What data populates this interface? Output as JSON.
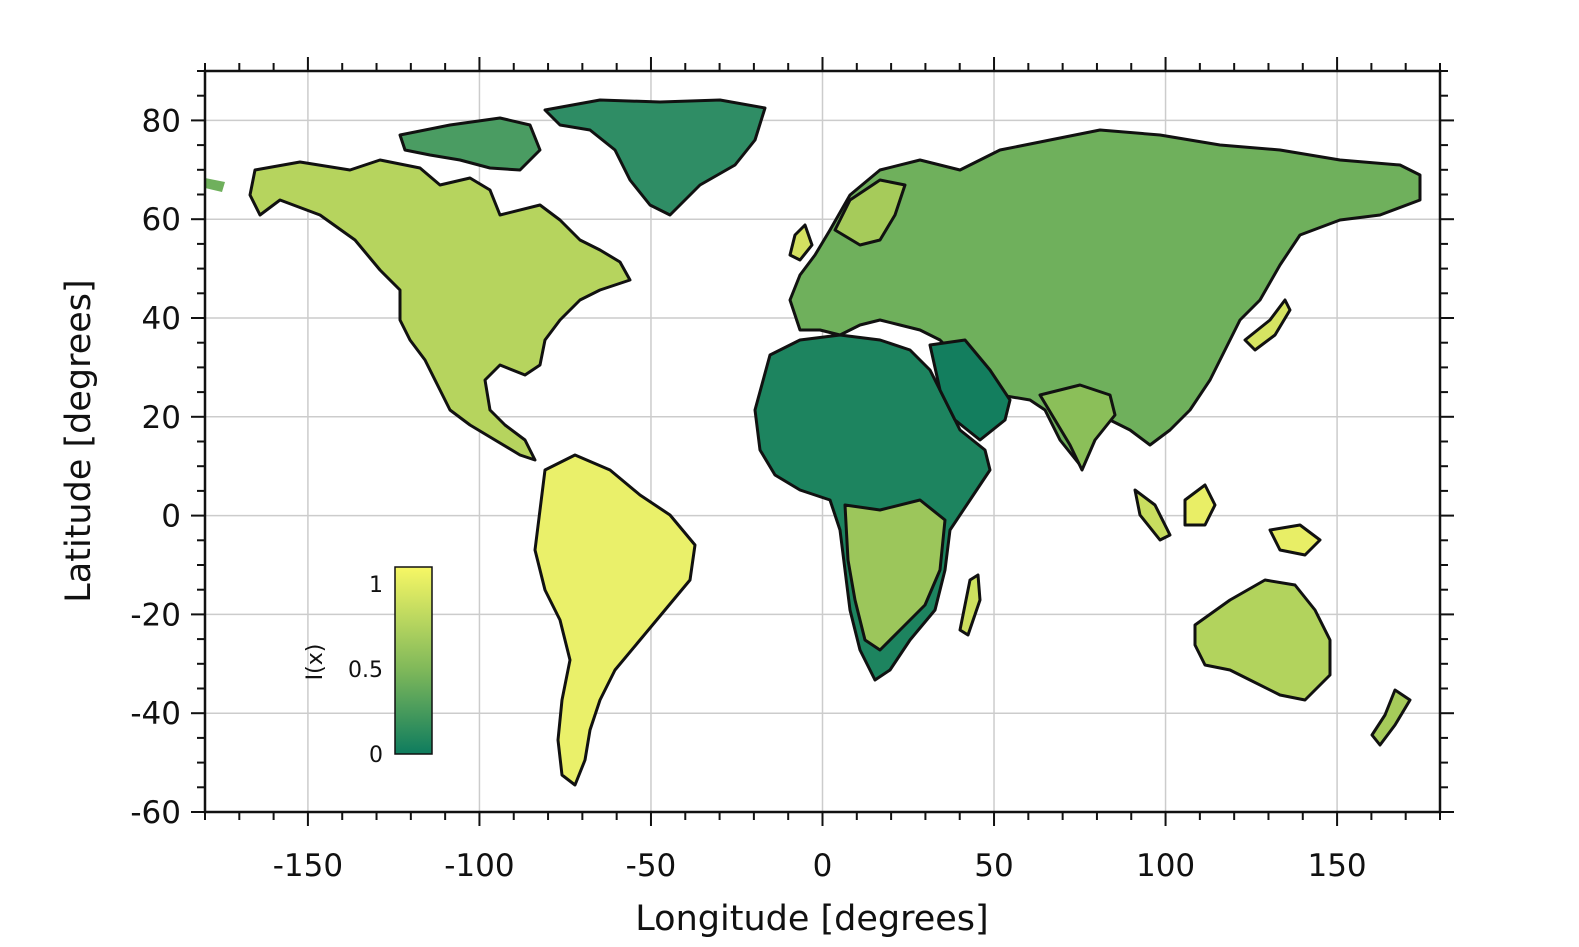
{
  "chart_data": {
    "type": "heatmap",
    "map_kind": "world land map, equirectangular",
    "xlabel": "Longitude [degrees]",
    "ylabel": "Latitude [degrees]",
    "xlim": [
      -180,
      180
    ],
    "ylim": [
      -60,
      90
    ],
    "xticks": [
      -150,
      -100,
      -50,
      0,
      50,
      100,
      150
    ],
    "yticks": [
      80,
      60,
      40,
      20,
      0,
      -20,
      -40,
      -60
    ],
    "xtick_labels": [
      "-150",
      "-100",
      "-50",
      "0",
      "50",
      "100",
      "150"
    ],
    "ytick_labels": [
      "80",
      "60",
      "40",
      "20",
      "0",
      "-20",
      "-40",
      "-60"
    ],
    "grid": true,
    "colorbar": {
      "label": "I(x)",
      "min": 0,
      "max": 1.1,
      "ticks": [
        0,
        0.5,
        1
      ],
      "tick_labels": [
        "0",
        "0.5",
        "1"
      ],
      "placement": "inside lower-left",
      "colors": {
        "low": "#0e7c5e",
        "mid": "#7fb85a",
        "high": "#f7f765"
      }
    },
    "regional_values": [
      {
        "region": "North America (west)",
        "value": 0.85
      },
      {
        "region": "North America (central)",
        "value": 0.35
      },
      {
        "region": "Greenland",
        "value": 0.25
      },
      {
        "region": "South America",
        "value": 0.95
      },
      {
        "region": "Sahara / North Africa",
        "value": 0.05
      },
      {
        "region": "Southern Africa",
        "value": 0.65
      },
      {
        "region": "Europe",
        "value": 0.9
      },
      {
        "region": "Central Asia",
        "value": 0.2
      },
      {
        "region": "Siberia",
        "value": 0.45
      },
      {
        "region": "East Asia",
        "value": 0.8
      },
      {
        "region": "Arabia",
        "value": 0.1
      },
      {
        "region": "South Asia",
        "value": 0.6
      },
      {
        "region": "Australia",
        "value": 0.7
      },
      {
        "region": "Southeast Asia",
        "value": 0.85
      }
    ]
  }
}
